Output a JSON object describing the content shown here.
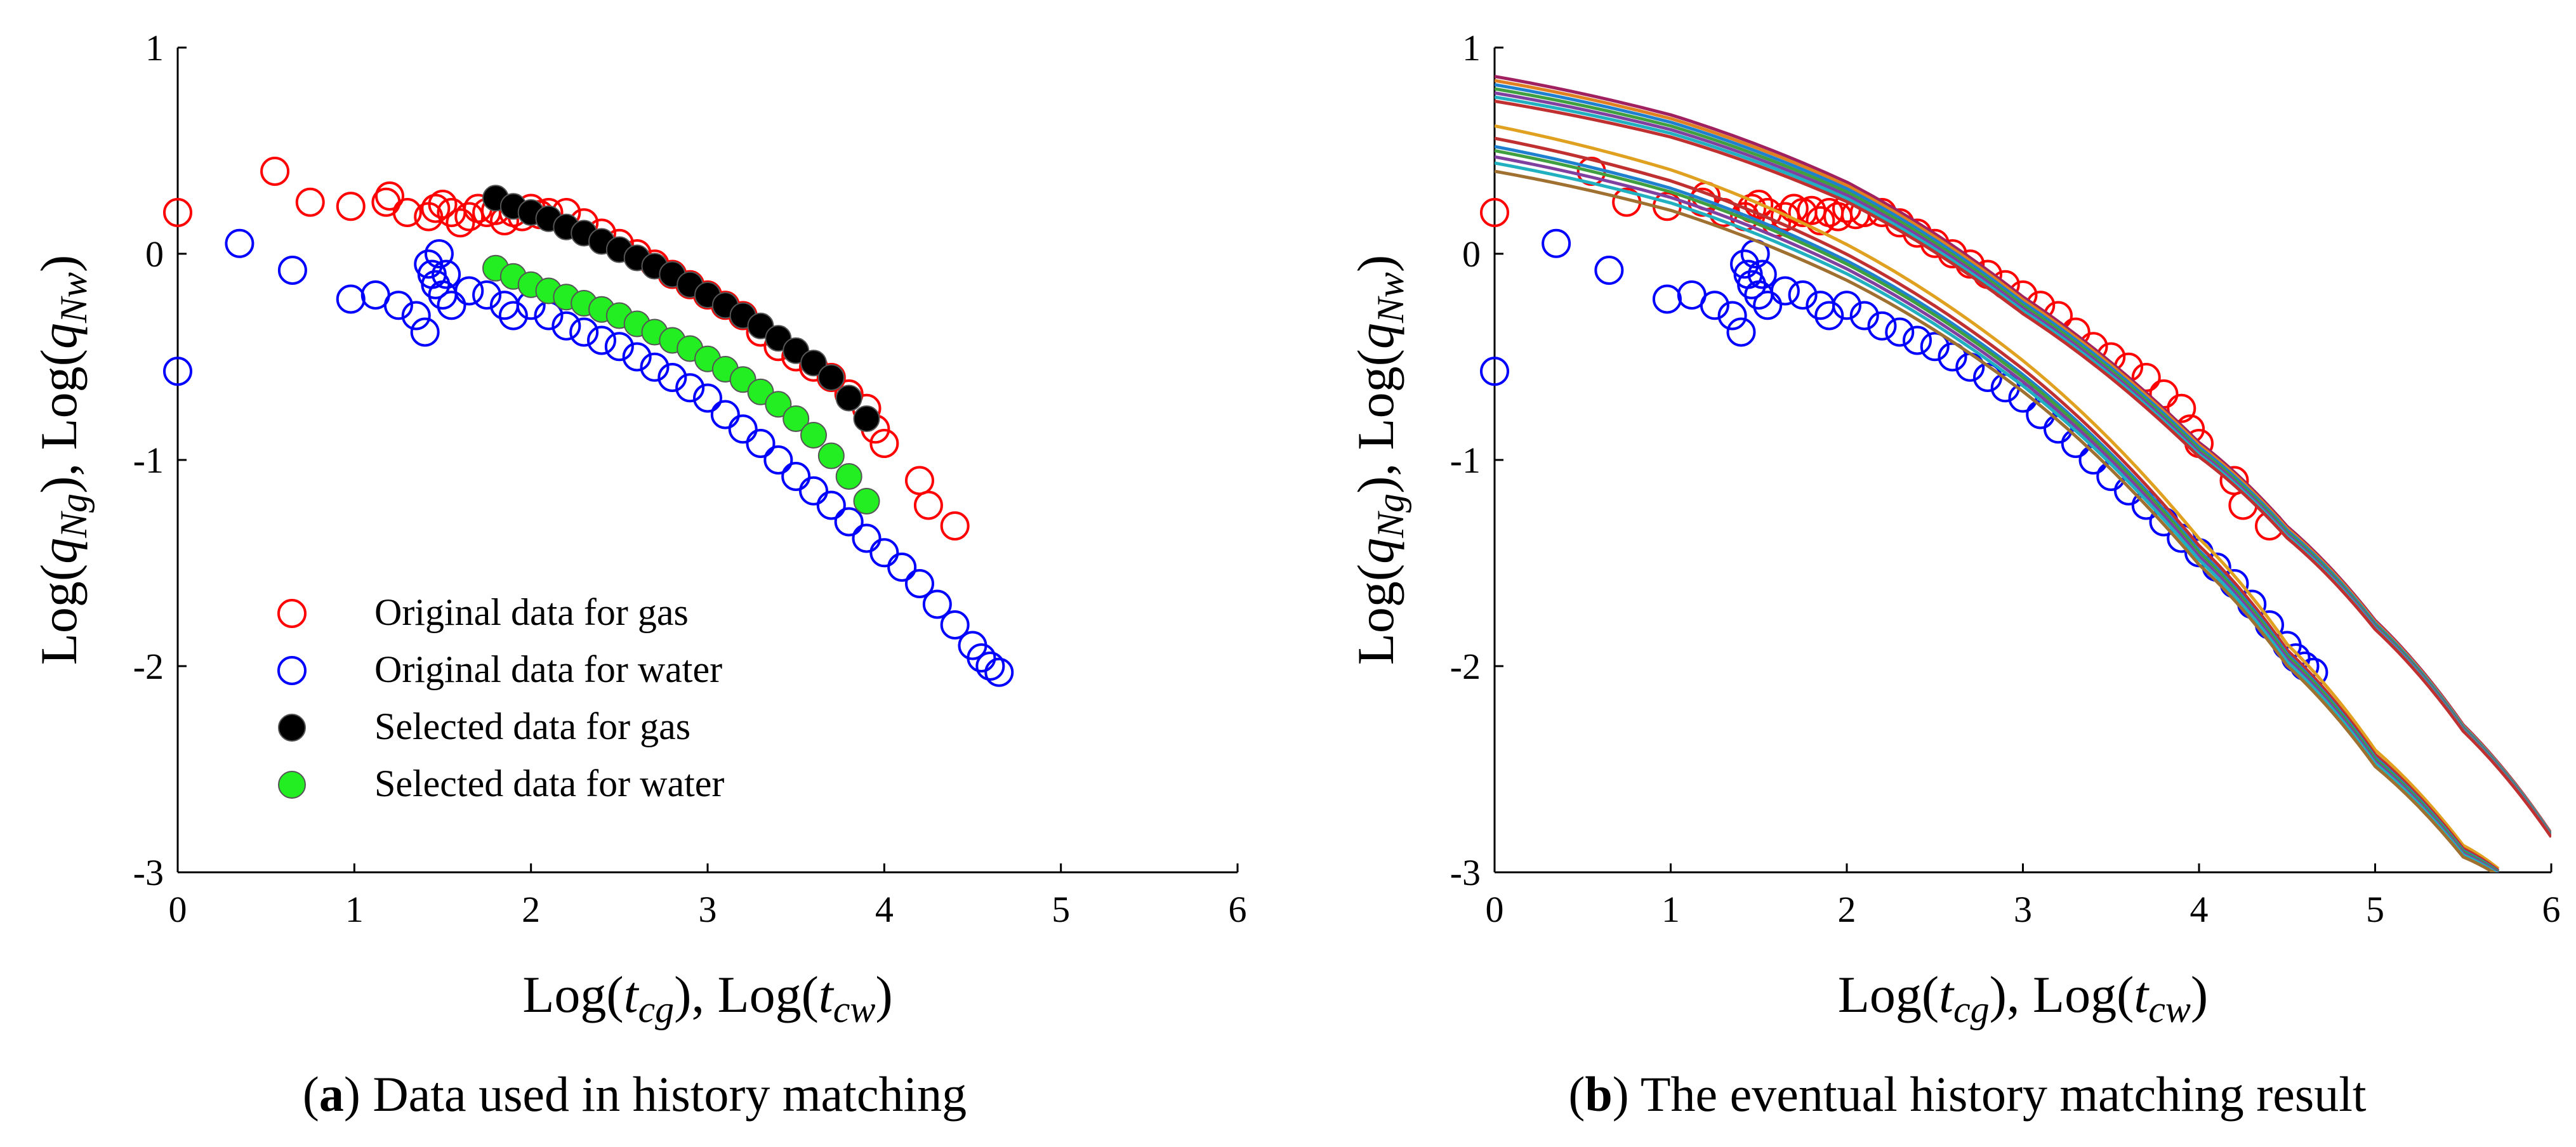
{
  "captions": {
    "a": {
      "letter": "a",
      "text": " Data used in history matching"
    },
    "b": {
      "letter": "b",
      "text": " The eventual history matching result"
    }
  },
  "chart_data": [
    {
      "type": "scatter",
      "panel": "a",
      "xlabel": "Log(t_cg), Log(t_cw)",
      "ylabel": "Log(q_Ng), Log(q_Nw)",
      "xlim": [
        0,
        6
      ],
      "ylim": [
        -3,
        1
      ],
      "xticks": [
        0,
        1,
        2,
        3,
        4,
        5,
        6
      ],
      "yticks": [
        -3,
        -2,
        -1,
        0,
        1
      ],
      "grid": false,
      "legend_placement": "lower-left",
      "series": [
        {
          "name": "Original data for gas",
          "marker": "open-circle",
          "color": "#ff0000",
          "x": [
            0,
            0.55,
            0.75,
            0.98,
            1.18,
            1.2,
            1.3,
            1.42,
            1.46,
            1.5,
            1.55,
            1.6,
            1.65,
            1.7,
            1.75,
            1.8,
            1.85,
            1.9,
            1.95,
            2.0,
            2.05,
            2.1,
            2.2,
            2.3,
            2.4,
            2.5,
            2.6,
            2.7,
            2.8,
            2.9,
            3.0,
            3.1,
            3.2,
            3.3,
            3.4,
            3.5,
            3.6,
            3.7,
            3.8,
            3.9,
            3.95,
            4.0,
            4.2,
            4.25,
            4.4
          ],
          "y": [
            0.2,
            0.4,
            0.25,
            0.23,
            0.25,
            0.28,
            0.2,
            0.18,
            0.22,
            0.24,
            0.2,
            0.15,
            0.18,
            0.22,
            0.2,
            0.21,
            0.16,
            0.2,
            0.18,
            0.22,
            0.19,
            0.2,
            0.2,
            0.15,
            0.1,
            0.05,
            0.0,
            -0.05,
            -0.1,
            -0.15,
            -0.2,
            -0.25,
            -0.3,
            -0.38,
            -0.45,
            -0.5,
            -0.55,
            -0.6,
            -0.68,
            -0.75,
            -0.85,
            -0.92,
            -1.1,
            -1.22,
            -1.32
          ]
        },
        {
          "name": "Original data for water",
          "marker": "open-circle",
          "color": "#0000ff",
          "x": [
            0,
            0.35,
            0.65,
            0.98,
            1.12,
            1.25,
            1.35,
            1.4,
            1.42,
            1.44,
            1.46,
            1.48,
            1.5,
            1.52,
            1.55,
            1.65,
            1.75,
            1.85,
            1.9,
            2.0,
            2.1,
            2.2,
            2.3,
            2.4,
            2.5,
            2.6,
            2.7,
            2.8,
            2.9,
            3.0,
            3.1,
            3.2,
            3.3,
            3.4,
            3.5,
            3.6,
            3.7,
            3.8,
            3.9,
            4.0,
            4.1,
            4.2,
            4.3,
            4.4,
            4.5,
            4.55,
            4.6,
            4.65
          ],
          "y": [
            -0.57,
            0.05,
            -0.08,
            -0.22,
            -0.2,
            -0.25,
            -0.3,
            -0.38,
            -0.05,
            -0.1,
            -0.15,
            0.0,
            -0.2,
            -0.1,
            -0.25,
            -0.18,
            -0.2,
            -0.25,
            -0.3,
            -0.25,
            -0.3,
            -0.35,
            -0.38,
            -0.42,
            -0.45,
            -0.5,
            -0.55,
            -0.6,
            -0.65,
            -0.7,
            -0.78,
            -0.85,
            -0.92,
            -1.0,
            -1.08,
            -1.15,
            -1.22,
            -1.3,
            -1.38,
            -1.45,
            -1.52,
            -1.6,
            -1.7,
            -1.8,
            -1.9,
            -1.96,
            -2.0,
            -2.03
          ]
        },
        {
          "name": "Selected data for gas",
          "marker": "filled-circle",
          "color": "#000000",
          "x": [
            1.8,
            1.9,
            2.0,
            2.1,
            2.2,
            2.3,
            2.4,
            2.5,
            2.6,
            2.7,
            2.8,
            2.9,
            3.0,
            3.1,
            3.2,
            3.3,
            3.4,
            3.5,
            3.6,
            3.7,
            3.8,
            3.9
          ],
          "y": [
            0.27,
            0.23,
            0.2,
            0.17,
            0.13,
            0.1,
            0.06,
            0.02,
            -0.02,
            -0.06,
            -0.1,
            -0.15,
            -0.2,
            -0.25,
            -0.3,
            -0.35,
            -0.41,
            -0.47,
            -0.53,
            -0.6,
            -0.7,
            -0.8
          ]
        },
        {
          "name": "Selected data for water",
          "marker": "filled-circle",
          "color": "#22ee22",
          "x": [
            1.8,
            1.9,
            2.0,
            2.1,
            2.2,
            2.3,
            2.4,
            2.5,
            2.6,
            2.7,
            2.8,
            2.9,
            3.0,
            3.1,
            3.2,
            3.3,
            3.4,
            3.5,
            3.6,
            3.7,
            3.8,
            3.9
          ],
          "y": [
            -0.07,
            -0.11,
            -0.15,
            -0.18,
            -0.21,
            -0.24,
            -0.27,
            -0.3,
            -0.34,
            -0.38,
            -0.42,
            -0.46,
            -0.51,
            -0.56,
            -0.61,
            -0.67,
            -0.73,
            -0.8,
            -0.88,
            -0.98,
            -1.08,
            -1.2
          ]
        }
      ]
    },
    {
      "type": "line",
      "panel": "b",
      "xlabel": "Log(t_cg), Log(t_cw)",
      "ylabel": "Log(q_Ng), Log(q_Nw)",
      "xlim": [
        0,
        6
      ],
      "ylim": [
        -3,
        1
      ],
      "xticks": [
        0,
        1,
        2,
        3,
        4,
        5,
        6
      ],
      "yticks": [
        -3,
        -2,
        -1,
        0,
        1
      ],
      "grid": false,
      "scatter_series": [
        {
          "marker": "open-circle",
          "color": "#ff0000",
          "same_as": "Original data for gas"
        },
        {
          "marker": "open-circle",
          "color": "#0000ff",
          "same_as": "Original data for water"
        }
      ],
      "curve_bundles": [
        {
          "name": "gas fits",
          "x": [
            0,
            1,
            2,
            3,
            4,
            4.5,
            5,
            5.5,
            6
          ],
          "y": [
            0.8,
            0.62,
            0.3,
            -0.25,
            -0.95,
            -1.35,
            -1.8,
            -2.3,
            -2.82
          ],
          "offsets": [
            0.06,
            0.04,
            0.02,
            0.0,
            -0.02,
            -0.04,
            -0.06
          ],
          "colors": [
            "#a02060",
            "#e08020",
            "#2080d0",
            "#40a040",
            "#8040a0",
            "#20b0c0",
            "#c03030"
          ]
        },
        {
          "name": "water fits",
          "x": [
            0,
            1,
            2,
            3,
            4,
            4.5,
            5,
            5.5,
            5.7
          ],
          "y": [
            0.5,
            0.3,
            -0.05,
            -0.6,
            -1.45,
            -1.95,
            -2.45,
            -2.9,
            -3.0
          ],
          "offsets": [
            0.12,
            0.06,
            0.02,
            0.0,
            -0.03,
            -0.06,
            -0.1
          ],
          "colors": [
            "#e0a020",
            "#c03030",
            "#2080d0",
            "#40a040",
            "#8040a0",
            "#20b0c0",
            "#a07030"
          ]
        }
      ]
    }
  ],
  "legend": [
    {
      "label": "Original data for gas"
    },
    {
      "label": "Original data for water"
    },
    {
      "label": "Selected data for gas"
    },
    {
      "label": "Selected data for water"
    }
  ]
}
